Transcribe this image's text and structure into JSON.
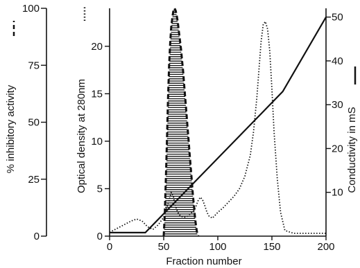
{
  "chart_data": {
    "type": "line",
    "title": "",
    "xlabel": "Fraction number",
    "xlim": [
      0,
      200
    ],
    "x_ticks": [
      0,
      50,
      100,
      150,
      200
    ],
    "axes": {
      "inhibitory": {
        "label": "% inhibitory activity",
        "range": [
          0,
          100
        ],
        "ticks": [
          0,
          25,
          50,
          75,
          100
        ]
      },
      "od": {
        "label": "Optical density at 280nm",
        "range": [
          0,
          24
        ],
        "ticks": [
          0,
          5,
          10,
          15,
          20
        ]
      },
      "conductivity": {
        "label": "Conductivity in mS",
        "range": [
          0,
          52
        ],
        "ticks": [
          10,
          20,
          30,
          40,
          50
        ]
      }
    },
    "series": [
      {
        "name": "% inhibitory activity",
        "style": "dashed",
        "axis": "inhibitory",
        "x": [
          50,
          51,
          52,
          53,
          54,
          55,
          56,
          57,
          58,
          59,
          60,
          61,
          62,
          63,
          64,
          65,
          66,
          67,
          68,
          69,
          70,
          71,
          72,
          73,
          74,
          75,
          76,
          77,
          78,
          79,
          80,
          81,
          82
        ],
        "y": [
          0,
          10,
          25,
          42,
          60,
          75,
          85,
          92,
          96,
          99,
          100,
          99,
          97,
          94,
          90,
          86,
          82,
          77,
          72,
          66,
          60,
          54,
          48,
          42,
          36,
          30,
          24,
          18,
          13,
          8,
          4,
          1,
          0
        ]
      },
      {
        "name": "Optical density at 280nm",
        "style": "dotted",
        "axis": "od",
        "x": [
          0,
          10,
          20,
          25,
          30,
          35,
          40,
          45,
          50,
          52,
          55,
          57,
          59,
          60,
          62,
          64,
          66,
          68,
          70,
          72,
          74,
          76,
          78,
          80,
          82,
          84,
          86,
          88,
          90,
          92,
          95,
          100,
          105,
          110,
          115,
          120,
          125,
          130,
          133,
          136,
          138,
          140,
          142,
          144,
          146,
          148,
          150,
          152,
          155,
          158,
          162,
          170,
          180,
          190,
          200
        ],
        "y": [
          0.4,
          1.0,
          1.6,
          1.8,
          1.6,
          1.0,
          0.7,
          1.2,
          2.0,
          2.7,
          3.8,
          4.6,
          4.2,
          3.5,
          2.8,
          2.3,
          2.1,
          2.0,
          2.0,
          2.1,
          2.3,
          2.5,
          2.7,
          3.2,
          3.8,
          4.1,
          3.8,
          3.2,
          2.5,
          2.1,
          1.9,
          2.5,
          3.0,
          3.6,
          4.2,
          5.0,
          6.3,
          8.5,
          11.0,
          14.5,
          17.5,
          20.5,
          22.3,
          22.6,
          21.8,
          19.5,
          15.5,
          11.0,
          6.0,
          2.5,
          0.6,
          0.3,
          0.3,
          0.3,
          0.3
        ]
      },
      {
        "name": "Conductivity in mS",
        "style": "solid",
        "axis": "conductivity",
        "x": [
          0,
          33,
          160,
          200
        ],
        "y": [
          0.8,
          0.8,
          33,
          50
        ]
      }
    ]
  }
}
